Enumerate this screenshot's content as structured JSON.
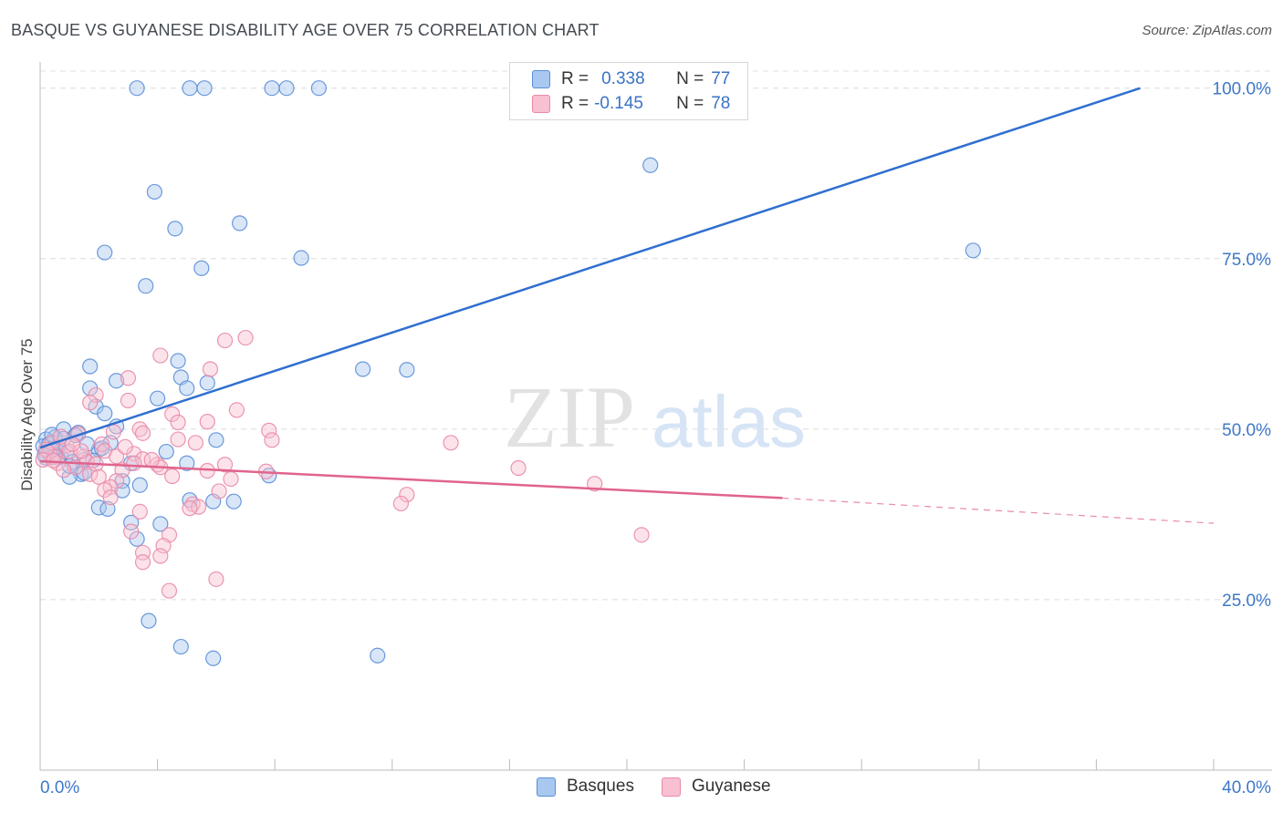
{
  "header": {
    "title": "BASQUE VS GUYANESE DISABILITY AGE OVER 75 CORRELATION CHART",
    "source": "Source: ZipAtlas.com"
  },
  "watermark": {
    "zip": "ZIP",
    "atlas": "atlas"
  },
  "legend": {
    "rows": [
      {
        "r_label": "R =",
        "r_value": "0.338",
        "n_label": "N =",
        "n_value": "77",
        "color": "#a8c8f0",
        "border": "#5b8fd6"
      },
      {
        "r_label": "R =",
        "r_value": "-0.145",
        "n_label": "N =",
        "n_value": "78",
        "color": "#f8c0d0",
        "border": "#e98aa8"
      }
    ]
  },
  "bottom_legend": {
    "items": [
      "Basques",
      "Guyanese"
    ]
  },
  "chart_data": {
    "type": "scatter",
    "title": "BASQUE VS GUYANESE DISABILITY AGE OVER 75 CORRELATION CHART",
    "xlabel": "",
    "ylabel": "Disability Age Over 75",
    "xlim": [
      0,
      40
    ],
    "ylim": [
      0,
      102.5
    ],
    "x_tick_labels": [
      "0.0%",
      "40.0%"
    ],
    "y_ticks": [
      25,
      50,
      75,
      100
    ],
    "y_tick_labels": [
      "25.0%",
      "50.0%",
      "75.0%",
      "100.0%"
    ],
    "grid": true,
    "legend_position": "top-center",
    "series": [
      {
        "name": "Basques",
        "color": "#5b8fd6",
        "fill": "#a8c8f0",
        "trend": {
          "x": [
            0,
            37.5
          ],
          "y": [
            47.3,
            100
          ]
        },
        "points": [
          [
            3.3,
            100
          ],
          [
            5.1,
            100
          ],
          [
            5.6,
            100
          ],
          [
            7.9,
            100
          ],
          [
            8.4,
            100
          ],
          [
            9.5,
            100
          ],
          [
            20.8,
            88.7
          ],
          [
            3.9,
            84.8
          ],
          [
            6.8,
            80.2
          ],
          [
            4.6,
            79.4
          ],
          [
            31.8,
            76.2
          ],
          [
            2.2,
            75.9
          ],
          [
            8.9,
            75.1
          ],
          [
            5.5,
            73.6
          ],
          [
            3.6,
            71.0
          ],
          [
            1.7,
            59.2
          ],
          [
            4.7,
            60.0
          ],
          [
            11.0,
            58.8
          ],
          [
            12.5,
            58.7
          ],
          [
            2.6,
            57.1
          ],
          [
            4.8,
            57.6
          ],
          [
            1.7,
            56.0
          ],
          [
            5.7,
            56.8
          ],
          [
            5.0,
            56.0
          ],
          [
            4.0,
            54.5
          ],
          [
            1.9,
            53.3
          ],
          [
            2.2,
            52.3
          ],
          [
            0.8,
            50.0
          ],
          [
            2.6,
            50.4
          ],
          [
            1.3,
            49.5
          ],
          [
            1.2,
            49.1
          ],
          [
            0.5,
            48.8
          ],
          [
            2.4,
            48.0
          ],
          [
            0.2,
            48.5
          ],
          [
            0.1,
            47.5
          ],
          [
            0.4,
            47.0
          ],
          [
            0.3,
            46.5
          ],
          [
            0.7,
            46.0
          ],
          [
            0.9,
            46.6
          ],
          [
            0.6,
            45.8
          ],
          [
            1.5,
            45.5
          ],
          [
            1.1,
            45.2
          ],
          [
            0.2,
            45.8
          ],
          [
            0.4,
            45.9
          ],
          [
            6.0,
            48.4
          ],
          [
            2.0,
            47.0
          ],
          [
            4.3,
            46.7
          ],
          [
            1.8,
            45.4
          ],
          [
            3.1,
            45.0
          ],
          [
            5.0,
            45.0
          ],
          [
            1.4,
            43.4
          ],
          [
            1.0,
            43.0
          ],
          [
            1.5,
            43.6
          ],
          [
            2.8,
            42.4
          ],
          [
            2.8,
            41.0
          ],
          [
            3.4,
            41.8
          ],
          [
            7.8,
            43.2
          ],
          [
            5.1,
            39.6
          ],
          [
            5.9,
            39.4
          ],
          [
            6.6,
            39.4
          ],
          [
            2.0,
            38.5
          ],
          [
            2.3,
            38.3
          ],
          [
            3.1,
            36.3
          ],
          [
            4.1,
            36.1
          ],
          [
            3.3,
            33.9
          ],
          [
            3.7,
            21.9
          ],
          [
            4.8,
            18.1
          ],
          [
            5.9,
            16.4
          ],
          [
            11.5,
            16.8
          ],
          [
            0.3,
            47.8
          ],
          [
            0.6,
            47.4
          ],
          [
            0.15,
            46.2
          ],
          [
            0.8,
            48.6
          ],
          [
            1.6,
            47.8
          ],
          [
            0.4,
            49.2
          ],
          [
            1.0,
            44.6
          ],
          [
            2.1,
            47.2
          ]
        ]
      },
      {
        "name": "Guyanese",
        "color": "#e98aa8",
        "fill": "#f8c0d0",
        "trend": {
          "x": [
            0,
            25.3
          ],
          "y": [
            45.3,
            39.9
          ]
        },
        "trend_dashed": {
          "x": [
            25.3,
            40
          ],
          "y": [
            39.9,
            36.2
          ]
        },
        "points": [
          [
            7.0,
            63.4
          ],
          [
            6.3,
            63.0
          ],
          [
            4.1,
            60.8
          ],
          [
            5.8,
            58.8
          ],
          [
            3.0,
            57.5
          ],
          [
            1.9,
            55.0
          ],
          [
            1.7,
            53.9
          ],
          [
            3.0,
            54.2
          ],
          [
            6.7,
            52.8
          ],
          [
            4.5,
            52.2
          ],
          [
            4.7,
            51.0
          ],
          [
            5.7,
            51.1
          ],
          [
            3.4,
            50.0
          ],
          [
            7.8,
            49.8
          ],
          [
            2.5,
            49.6
          ],
          [
            1.3,
            49.3
          ],
          [
            3.5,
            49.4
          ],
          [
            7.9,
            48.4
          ],
          [
            14.0,
            48.0
          ],
          [
            4.7,
            48.5
          ],
          [
            5.3,
            48.0
          ],
          [
            2.1,
            47.8
          ],
          [
            0.9,
            47.6
          ],
          [
            2.2,
            46.8
          ],
          [
            1.0,
            46.7
          ],
          [
            0.3,
            46.5
          ],
          [
            0.5,
            46.0
          ],
          [
            1.5,
            46.0
          ],
          [
            3.2,
            46.4
          ],
          [
            2.6,
            46.0
          ],
          [
            3.5,
            45.6
          ],
          [
            1.6,
            45.2
          ],
          [
            0.6,
            45.0
          ],
          [
            3.2,
            45.0
          ],
          [
            4.0,
            44.8
          ],
          [
            6.3,
            44.8
          ],
          [
            5.7,
            43.9
          ],
          [
            7.7,
            43.8
          ],
          [
            4.1,
            44.4
          ],
          [
            2.8,
            44.0
          ],
          [
            4.5,
            43.1
          ],
          [
            1.7,
            43.4
          ],
          [
            16.3,
            44.3
          ],
          [
            6.5,
            42.7
          ],
          [
            2.6,
            42.4
          ],
          [
            2.4,
            41.5
          ],
          [
            2.2,
            41.1
          ],
          [
            18.9,
            42.0
          ],
          [
            6.1,
            40.9
          ],
          [
            12.5,
            40.4
          ],
          [
            2.4,
            40.0
          ],
          [
            12.3,
            39.1
          ],
          [
            5.2,
            39.0
          ],
          [
            5.4,
            38.6
          ],
          [
            5.1,
            38.4
          ],
          [
            3.4,
            37.9
          ],
          [
            3.1,
            35.0
          ],
          [
            4.4,
            34.5
          ],
          [
            20.5,
            34.5
          ],
          [
            4.2,
            32.9
          ],
          [
            3.5,
            31.9
          ],
          [
            4.1,
            31.4
          ],
          [
            3.5,
            30.5
          ],
          [
            6.0,
            28.0
          ],
          [
            4.4,
            26.3
          ],
          [
            0.4,
            48.0
          ],
          [
            0.2,
            47.0
          ],
          [
            0.7,
            48.9
          ],
          [
            1.2,
            44.4
          ],
          [
            1.9,
            44.9
          ],
          [
            2.9,
            47.4
          ],
          [
            0.1,
            45.5
          ],
          [
            0.8,
            44.0
          ],
          [
            3.8,
            45.5
          ],
          [
            1.4,
            46.8
          ],
          [
            2.0,
            43.0
          ],
          [
            1.1,
            47.8
          ],
          [
            0.45,
            45.4
          ]
        ]
      }
    ]
  }
}
